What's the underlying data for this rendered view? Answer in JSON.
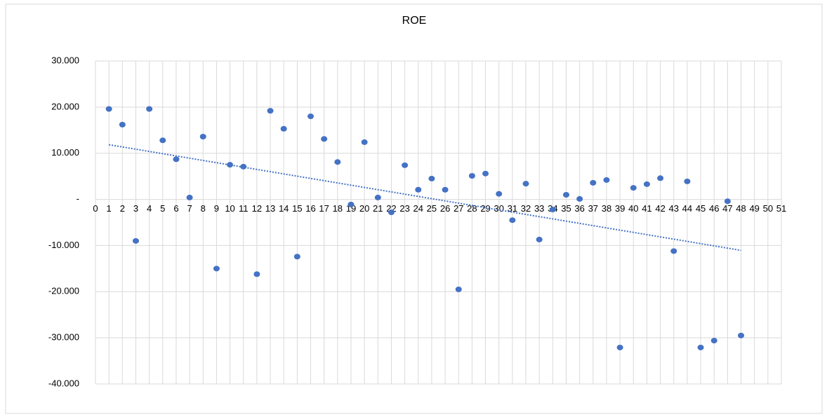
{
  "chart_data": {
    "type": "scatter",
    "title": "ROE",
    "series": [
      {
        "name": "ROE",
        "color": "#4472c4",
        "x": [
          1,
          2,
          3,
          4,
          5,
          6,
          7,
          8,
          9,
          10,
          11,
          12,
          13,
          14,
          15,
          16,
          17,
          18,
          19,
          20,
          21,
          22,
          23,
          24,
          25,
          26,
          27,
          28,
          29,
          30,
          31,
          32,
          33,
          34,
          35,
          36,
          37,
          38,
          39,
          40,
          41,
          42,
          43,
          44,
          45,
          46,
          47,
          48
        ],
        "values": [
          19.6,
          16.2,
          -9.0,
          19.6,
          12.8,
          8.7,
          0.4,
          13.6,
          -15.0,
          7.5,
          7.1,
          -16.2,
          19.2,
          15.3,
          -12.4,
          18.0,
          13.1,
          8.1,
          -1.1,
          12.4,
          0.4,
          -2.8,
          7.4,
          2.1,
          4.5,
          2.1,
          -19.5,
          5.1,
          5.6,
          1.2,
          -4.5,
          3.4,
          -8.7,
          -2.2,
          1.0,
          0.1,
          3.6,
          4.2,
          -32.1,
          2.5,
          3.3,
          4.6,
          -11.2,
          3.9,
          -32.1,
          -30.6,
          -0.4,
          -29.5
        ]
      }
    ],
    "trendline": "linear",
    "xlim": [
      0,
      51
    ],
    "xticks": [
      0,
      1,
      2,
      3,
      4,
      5,
      6,
      7,
      8,
      9,
      10,
      11,
      12,
      13,
      14,
      15,
      16,
      17,
      18,
      19,
      20,
      21,
      22,
      23,
      24,
      25,
      26,
      27,
      28,
      29,
      30,
      31,
      32,
      33,
      34,
      35,
      36,
      37,
      38,
      39,
      40,
      41,
      42,
      43,
      44,
      45,
      46,
      47,
      48,
      49,
      50,
      51
    ],
    "ylim": [
      -40,
      30
    ],
    "yticks": [
      {
        "value": 30,
        "label": "30.000"
      },
      {
        "value": 20,
        "label": "20.000"
      },
      {
        "value": 10,
        "label": "10.000"
      },
      {
        "value": 0,
        "label": "-"
      },
      {
        "value": -10,
        "label": "-10.000"
      },
      {
        "value": -20,
        "label": "-20.000"
      },
      {
        "value": -30,
        "label": "-30.000"
      },
      {
        "value": -40,
        "label": "-40.000"
      }
    ],
    "grid": true
  }
}
